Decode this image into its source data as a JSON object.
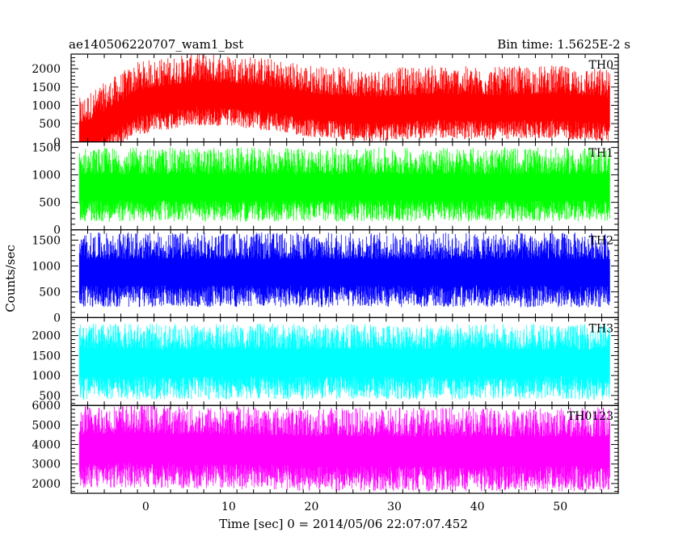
{
  "header": {
    "left": "ae140506220707_wam1_bst",
    "right": "Bin time: 1.5625E-2 s"
  },
  "chart_data": {
    "type": "line",
    "xlabel": "Time [sec] 0 = 2014/05/06 22:07:07.452",
    "ylabel": "Counts/sec",
    "xlim": [
      -9,
      57
    ],
    "x_range_data": [
      -8,
      56
    ],
    "x_ticks": [
      0,
      10,
      20,
      30,
      40,
      50
    ],
    "grid": false,
    "panels": [
      {
        "name": "TH0",
        "color": "#ff0000",
        "ylim": [
          0,
          2400
        ],
        "y_ticks": [
          0,
          500,
          1000,
          1500,
          2000
        ],
        "baseline": [
          0,
          1000,
          1250,
          1150,
          900,
          800,
          900,
          850,
          900,
          800
        ],
        "spread_low": 800,
        "spread_high": 1200
      },
      {
        "name": "TH1",
        "color": "#00ff00",
        "ylim": [
          0,
          1600
        ],
        "y_ticks": [
          0,
          500,
          1000,
          1500
        ],
        "baseline": [
          750,
          750,
          750,
          750,
          750,
          750,
          750,
          750,
          750,
          750
        ],
        "spread_low": 600,
        "spread_high": 750
      },
      {
        "name": "TH2",
        "color": "#0000ff",
        "ylim": [
          0,
          1700
        ],
        "y_ticks": [
          0,
          500,
          1000,
          1500
        ],
        "baseline": [
          850,
          850,
          850,
          850,
          850,
          850,
          850,
          850,
          850,
          850
        ],
        "spread_low": 650,
        "spread_high": 800
      },
      {
        "name": "TH3",
        "color": "#00ffff",
        "ylim": [
          250,
          2450
        ],
        "y_ticks": [
          500,
          1000,
          1500,
          2000
        ],
        "baseline": [
          1300,
          1300,
          1300,
          1300,
          1300,
          1300,
          1300,
          1300,
          1300,
          1300
        ],
        "spread_low": 900,
        "spread_high": 1000
      },
      {
        "name": "TH0123",
        "color": "#ff00ff",
        "ylim": [
          1500,
          6000
        ],
        "y_ticks": [
          2000,
          3000,
          4000,
          5000,
          6000
        ],
        "baseline": [
          3700,
          3800,
          3700,
          3700,
          3600,
          3600,
          3600,
          3600,
          3600,
          3600
        ],
        "spread_low": 2000,
        "spread_high": 2300
      }
    ]
  }
}
